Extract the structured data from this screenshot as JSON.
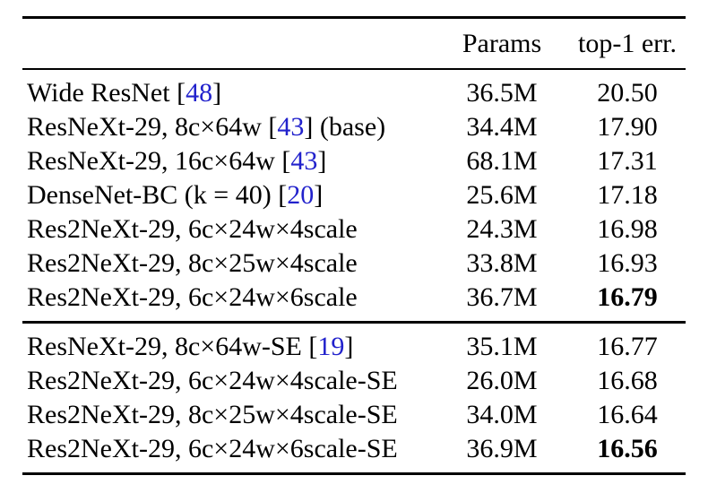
{
  "colors": {
    "background": "#FFFFFF",
    "text": "#000000",
    "rule": "#000000",
    "citation_blue": "#2222CC"
  },
  "table": {
    "header": {
      "model": "",
      "params": "Params",
      "err": "top-1 err."
    },
    "sections": [
      {
        "rows": [
          {
            "before": "Wide ResNet [",
            "cite": "48",
            "after": "]",
            "params": "36.5M",
            "err": "20.50"
          },
          {
            "before": "ResNeXt-29, 8c×64w [",
            "cite": "43",
            "after": "] (base)",
            "params": "34.4M",
            "err": "17.90"
          },
          {
            "before": "ResNeXt-29, 16c×64w [",
            "cite": "43",
            "after": "]",
            "params": "68.1M",
            "err": "17.31"
          },
          {
            "before": "DenseNet-BC (k = 40) [",
            "cite": "20",
            "after": "]",
            "params": "25.6M",
            "err": "17.18"
          },
          {
            "before": "Res2NeXt-29, 6c×24w×4scale",
            "cite": "",
            "after": "",
            "params": "24.3M",
            "err": "16.98"
          },
          {
            "before": "Res2NeXt-29, 8c×25w×4scale",
            "cite": "",
            "after": "",
            "params": "33.8M",
            "err": "16.93"
          },
          {
            "before": "Res2NeXt-29, 6c×24w×6scale",
            "cite": "",
            "after": "",
            "params": "36.7M",
            "err": "16.79"
          }
        ]
      },
      {
        "rows": [
          {
            "before": "ResNeXt-29, 8c×64w-SE [",
            "cite": "19",
            "after": "]",
            "params": "35.1M",
            "err": "16.77"
          },
          {
            "before": "Res2NeXt-29, 6c×24w×4scale-SE",
            "cite": "",
            "after": "",
            "params": "26.0M",
            "err": "16.68"
          },
          {
            "before": "Res2NeXt-29, 8c×25w×4scale-SE",
            "cite": "",
            "after": "",
            "params": "34.0M",
            "err": "16.64"
          },
          {
            "before": "Res2NeXt-29, 6c×24w×6scale-SE",
            "cite": "",
            "after": "",
            "params": "36.9M",
            "err": "16.56"
          }
        ]
      }
    ]
  }
}
